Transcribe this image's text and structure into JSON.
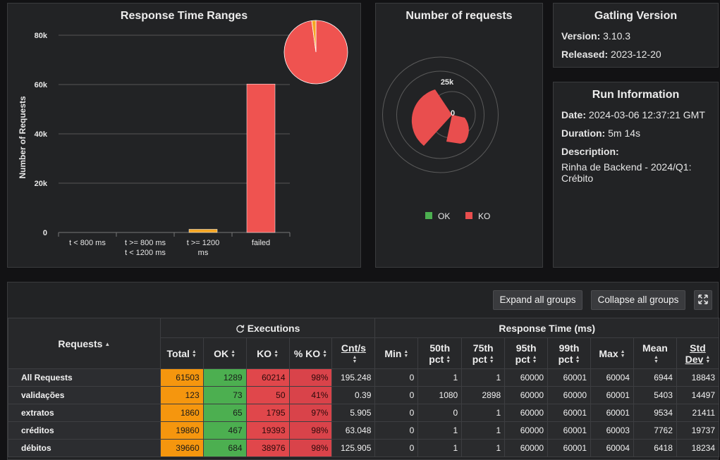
{
  "response_time_ranges": {
    "title": "Response Time Ranges",
    "ylabel": "Number of Requests"
  },
  "number_of_requests": {
    "title": "Number of requests",
    "tick_outer": "25k",
    "tick_center": "0",
    "legend": [
      {
        "label": "OK",
        "color": "#4caf50"
      },
      {
        "label": "KO",
        "color": "#e94e4e"
      }
    ]
  },
  "gatling_version": {
    "title": "Gatling Version",
    "version_label": "Version:",
    "version": "3.10.3",
    "released_label": "Released:",
    "released": "2023-12-20"
  },
  "run_information": {
    "title": "Run Information",
    "date_label": "Date:",
    "date": "2024-03-06 12:37:21 GMT",
    "duration_label": "Duration:",
    "duration": "5m 14s",
    "description_label": "Description:",
    "description_line1": "Rinha de Backend - 2024/Q1:",
    "description_line2": "Crébito"
  },
  "toolbar": {
    "expand_label": "Expand all groups",
    "collapse_label": "Collapse all groups"
  },
  "stats_table": {
    "requests_header": "Requests",
    "executions_header": "Executions",
    "response_time_header": "Response Time (ms)",
    "exec_columns": [
      {
        "l1": "Total",
        "l2": ""
      },
      {
        "l1": "OK",
        "l2": ""
      },
      {
        "l1": "KO",
        "l2": ""
      },
      {
        "l1": "% KO",
        "l2": ""
      },
      {
        "l1": "Cnt/s",
        "l2": ""
      }
    ],
    "rt_columns": [
      {
        "l1": "Min",
        "l2": ""
      },
      {
        "l1": "50th",
        "l2": "pct"
      },
      {
        "l1": "75th",
        "l2": "pct"
      },
      {
        "l1": "95th",
        "l2": "pct"
      },
      {
        "l1": "99th",
        "l2": "pct"
      },
      {
        "l1": "Max",
        "l2": ""
      },
      {
        "l1": "Mean",
        "l2": ""
      },
      {
        "l1": "Std",
        "l2": "Dev"
      }
    ],
    "rows": [
      {
        "name": "All Requests",
        "total": "61503",
        "ok": "1289",
        "ko": "60214",
        "pko": "98%",
        "cnts": "195.248",
        "min": "0",
        "p50": "1",
        "p75": "1",
        "p95": "60000",
        "p99": "60001",
        "max": "60004",
        "mean": "6944",
        "std": "18843"
      },
      {
        "name": "validações",
        "total": "123",
        "ok": "73",
        "ko": "50",
        "pko": "41%",
        "cnts": "0.39",
        "min": "0",
        "p50": "1080",
        "p75": "2898",
        "p95": "60000",
        "p99": "60000",
        "max": "60001",
        "mean": "5403",
        "std": "14497"
      },
      {
        "name": "extratos",
        "total": "1860",
        "ok": "65",
        "ko": "1795",
        "pko": "97%",
        "cnts": "5.905",
        "min": "0",
        "p50": "0",
        "p75": "1",
        "p95": "60000",
        "p99": "60001",
        "max": "60001",
        "mean": "9534",
        "std": "21411"
      },
      {
        "name": "créditos",
        "total": "19860",
        "ok": "467",
        "ko": "19393",
        "pko": "98%",
        "cnts": "63.048",
        "min": "0",
        "p50": "1",
        "p75": "1",
        "p95": "60000",
        "p99": "60001",
        "max": "60003",
        "mean": "7762",
        "std": "19737"
      },
      {
        "name": "débitos",
        "total": "39660",
        "ok": "684",
        "ko": "38976",
        "pko": "98%",
        "cnts": "125.905",
        "min": "0",
        "p50": "1",
        "p75": "1",
        "p95": "60000",
        "p99": "60001",
        "max": "60004",
        "mean": "6418",
        "std": "18234"
      }
    ]
  },
  "chart_data": [
    {
      "type": "bar",
      "title": "Response Time Ranges",
      "ylabel": "Number of Requests",
      "ylim": [
        0,
        80000
      ],
      "yticks": [
        "0",
        "20k",
        "40k",
        "60k",
        "80k"
      ],
      "categories": [
        [
          "t < 800 ms"
        ],
        [
          "t >= 800 ms",
          "t < 1200 ms"
        ],
        [
          "t >= 1200",
          "ms"
        ],
        [
          "failed"
        ]
      ],
      "values": [
        0,
        0,
        1289,
        60214
      ],
      "colors": [
        "#4caf50",
        "#f5a623",
        "#f5a623",
        "#ef5350"
      ]
    },
    {
      "type": "pie",
      "slices": [
        {
          "label": "failed",
          "value": 60214,
          "color": "#ef5350"
        },
        {
          "label": "t >= 1200 ms",
          "value": 1289,
          "color": "#f5a623"
        }
      ]
    },
    {
      "type": "pie",
      "title": "Number of requests",
      "slices": [
        {
          "label": "OK",
          "value": 1289,
          "color": "#4caf50"
        },
        {
          "label": "KO",
          "value": 60214,
          "color": "#e94e4e"
        }
      ]
    }
  ]
}
